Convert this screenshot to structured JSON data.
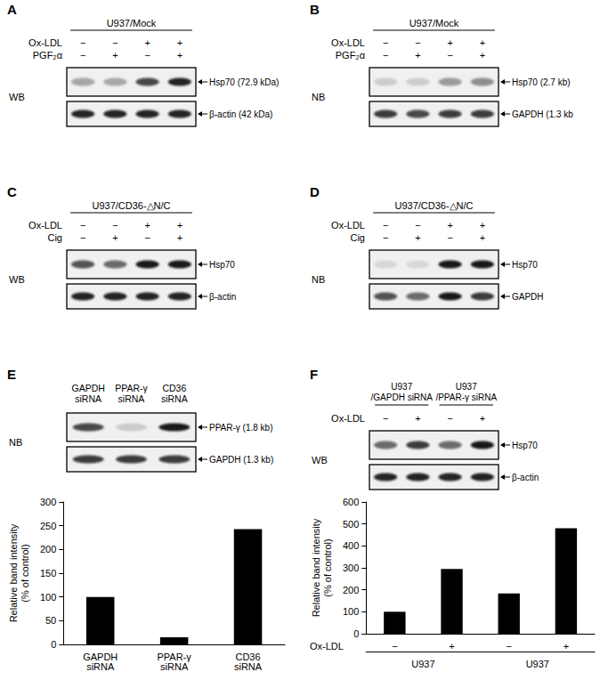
{
  "panels": [
    {
      "label": "A",
      "header": "U937/Mock",
      "rows": [
        {
          "name": "Ox-LDL",
          "signs": [
            "−",
            "−",
            "+",
            "+"
          ]
        },
        {
          "name": "PGF₂α",
          "signs": [
            "−",
            "+",
            "−",
            "+"
          ]
        }
      ],
      "method": "WB",
      "blots": [
        {
          "label": "Hsp70 (72.9 kDa)",
          "bands": [
            0.35,
            0.3,
            0.75,
            0.9
          ]
        },
        {
          "label": "β-actin (42 kDa)",
          "bands": [
            0.9,
            0.9,
            0.9,
            0.9
          ]
        }
      ]
    },
    {
      "label": "B",
      "header": "U937/Mock",
      "rows": [
        {
          "name": "Ox-LDL",
          "signs": [
            "−",
            "−",
            "+",
            "+"
          ]
        },
        {
          "name": "PGF₂α",
          "signs": [
            "−",
            "+",
            "−",
            "+"
          ]
        }
      ],
      "method": "NB",
      "blots": [
        {
          "label": "Hsp70 (2.7 kb)",
          "bands": [
            0.15,
            0.15,
            0.4,
            0.45
          ]
        },
        {
          "label": "GAPDH (1.3 kb",
          "bands": [
            0.8,
            0.75,
            0.8,
            0.8
          ]
        }
      ]
    },
    {
      "label": "C",
      "header": "U937/CD36-△N/C",
      "rows": [
        {
          "name": "Ox-LDL",
          "signs": [
            "−",
            "−",
            "+",
            "+"
          ]
        },
        {
          "name": "Cig",
          "signs": [
            "−",
            "+",
            "−",
            "+"
          ]
        }
      ],
      "method": "WB",
      "blots": [
        {
          "label": "Hsp70",
          "bands": [
            0.7,
            0.6,
            0.95,
            0.95
          ]
        },
        {
          "label": "β-actin",
          "bands": [
            0.9,
            0.9,
            0.9,
            0.9
          ]
        }
      ]
    },
    {
      "label": "D",
      "header": "U937/CD36-△N/C",
      "rows": [
        {
          "name": "Ox-LDL",
          "signs": [
            "−",
            "−",
            "+",
            "+"
          ]
        },
        {
          "name": "Cig",
          "signs": [
            "−",
            "+",
            "−",
            "+"
          ]
        }
      ],
      "method": "NB",
      "blots": [
        {
          "label": "Hsp70",
          "bands": [
            0.1,
            0.1,
            0.95,
            0.95
          ]
        },
        {
          "label": "GAPDH",
          "bands": [
            0.7,
            0.6,
            0.95,
            0.8
          ]
        }
      ]
    },
    {
      "label": "E",
      "columns": [
        [
          "GAPDH",
          "siRNA"
        ],
        [
          "PPAR-γ",
          "siRNA"
        ],
        [
          "CD36",
          "siRNA"
        ]
      ],
      "rows": [],
      "method": "NB",
      "blots": [
        {
          "label": "PPAR-γ (1.8 kb)",
          "bands": [
            0.75,
            0.15,
            0.95
          ]
        },
        {
          "label": "GAPDH (1.3 kb)",
          "bands": [
            0.8,
            0.8,
            0.8
          ]
        }
      ]
    },
    {
      "label": "F",
      "groups": [
        [
          "U937",
          "/GAPDH siRNA"
        ],
        [
          "U937",
          "/PPAR-γ siRNA"
        ]
      ],
      "rows": [
        {
          "name": "Ox-LDL",
          "signs": [
            "−",
            "+",
            "−",
            "+"
          ]
        }
      ],
      "method": "WB",
      "blots": [
        {
          "label": "Hsp70",
          "bands": [
            0.6,
            0.8,
            0.6,
            0.95
          ]
        },
        {
          "label": "β-actin",
          "bands": [
            0.9,
            0.9,
            0.9,
            0.9
          ]
        }
      ]
    }
  ],
  "chart_data": [
    {
      "type": "bar",
      "categories": [
        "GAPDH siRNA",
        "PPAR-γ siRNA",
        "CD36 siRNA"
      ],
      "values": [
        100,
        15,
        243
      ],
      "color": "#000000",
      "ylim": [
        0,
        300
      ],
      "yticks": [
        0,
        50,
        100,
        150,
        200,
        250,
        300
      ],
      "ylabel": "Relative band intensity\n(% of control)",
      "grid": false
    },
    {
      "type": "bar",
      "categories": [
        "−",
        "+",
        "−",
        "+"
      ],
      "values": [
        100,
        295,
        183,
        480
      ],
      "color": "#000000",
      "ylim": [
        0,
        600
      ],
      "yticks": [
        0,
        100,
        200,
        300,
        400,
        500,
        600
      ],
      "ylabel": "Relative band intensity\n(% of control)",
      "xlabel": "Ox-LDL",
      "groups": [
        "U937",
        "U937"
      ],
      "grid": false
    }
  ]
}
